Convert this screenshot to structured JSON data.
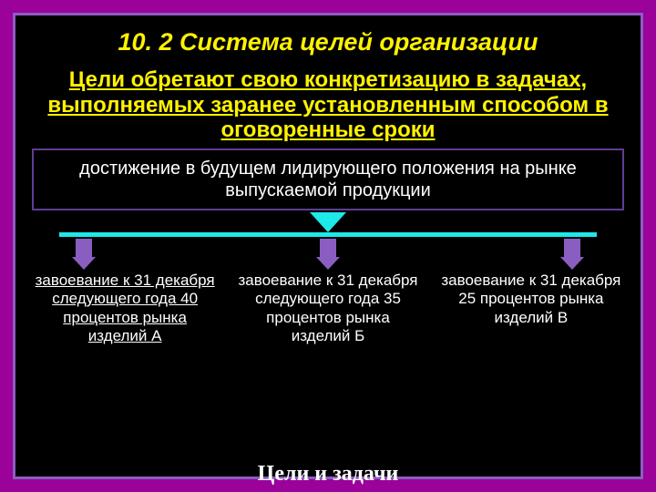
{
  "colors": {
    "slide_bg": "#9a029a",
    "frame_bg": "#000000",
    "frame_border": "#8a5ec0",
    "title_color": "#fef200",
    "subtitle_color": "#fef200",
    "goal_box_border": "#5e3d94",
    "goal_text_color": "#ffffff",
    "arrow_cyan": "#1de9e9",
    "hbar_color": "#1de9e9",
    "small_arrow_fill": "#8a5ec0",
    "col_text_color": "#ffffff",
    "footer_color": "#ffffff"
  },
  "title": "10. 2 Система целей организации",
  "subtitle": "Цели обретают свою конкретизацию в задачах, выполняемых заранее установленным способом в оговоренные сроки",
  "main_goal": "достижение в будущем лидирующего положения на рынке выпускаемой продукции",
  "columns": [
    {
      "text": "завоевание к 31 декабря следующего года 40 процентов рынка изделий А",
      "underline": true
    },
    {
      "text": "завоевание к 31 декабря следующего года 35 процентов рынка изделий Б",
      "underline": false
    },
    {
      "text": "завоевание к 31 декабря 25 процентов рынка изделий В",
      "underline": false
    }
  ],
  "footer": "Цели и задачи"
}
